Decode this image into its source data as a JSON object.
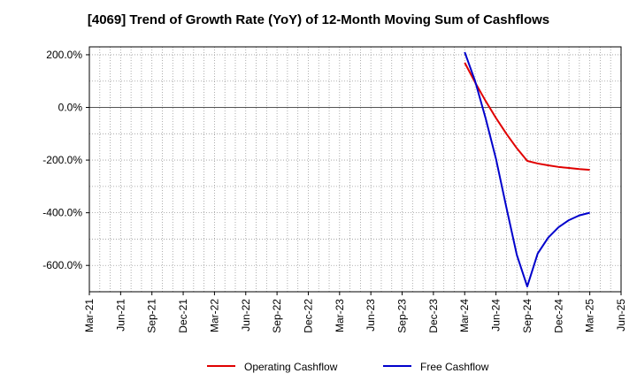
{
  "chart_data": {
    "type": "line",
    "title": "[4069]  Trend of Growth Rate (YoY) of 12-Month Moving Sum of Cashflows",
    "xlabel": "",
    "ylabel": "",
    "x_ticks": [
      "Mar-21",
      "Jun-21",
      "Sep-21",
      "Dec-21",
      "Mar-22",
      "Jun-22",
      "Sep-22",
      "Dec-22",
      "Mar-23",
      "Jun-23",
      "Sep-23",
      "Dec-23",
      "Mar-24",
      "Jun-24",
      "Sep-24",
      "Dec-24",
      "Mar-25",
      "Jun-25"
    ],
    "y_ticks": [
      200,
      0,
      -200,
      -400,
      -600
    ],
    "y_tick_labels": [
      "200.0%",
      "0.0%",
      "-200.0%",
      "-400.0%",
      "-600.0%"
    ],
    "ylim": [
      -700,
      230
    ],
    "xlim": [
      "Mar-21",
      "Jun-25"
    ],
    "grid": true,
    "legend_position": "bottom",
    "series": [
      {
        "name": "Operating Cashflow",
        "color": "#e00000",
        "points": [
          [
            "Mar-24",
            170
          ],
          [
            "Apr-24",
            95
          ],
          [
            "May-24",
            25
          ],
          [
            "Jun-24",
            -40
          ],
          [
            "Jul-24",
            -100
          ],
          [
            "Aug-24",
            -155
          ],
          [
            "Sep-24",
            -203
          ],
          [
            "Oct-24",
            -213
          ],
          [
            "Nov-24",
            -220
          ],
          [
            "Dec-24",
            -226
          ],
          [
            "Jan-25",
            -230
          ],
          [
            "Feb-25",
            -234
          ],
          [
            "Mar-25",
            -237
          ]
        ]
      },
      {
        "name": "Free Cashflow",
        "color": "#0000cc",
        "points": [
          [
            "Mar-24",
            210
          ],
          [
            "Apr-24",
            100
          ],
          [
            "May-24",
            -40
          ],
          [
            "Jun-24",
            -195
          ],
          [
            "Jul-24",
            -380
          ],
          [
            "Aug-24",
            -560
          ],
          [
            "Sep-24",
            -680
          ],
          [
            "Oct-24",
            -555
          ],
          [
            "Nov-24",
            -495
          ],
          [
            "Dec-24",
            -455
          ],
          [
            "Jan-25",
            -428
          ],
          [
            "Feb-25",
            -410
          ],
          [
            "Mar-25",
            -400
          ]
        ]
      }
    ]
  }
}
